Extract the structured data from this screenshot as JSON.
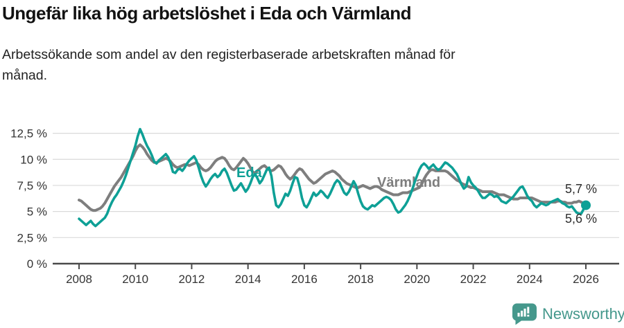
{
  "header": {
    "title": "Ungefär lika hög arbetslöshet i Eda och Värmland",
    "subtitle": "Arbetssökande som andel av den registerbaserade arbetskraften månad för månad.",
    "subtitle_lines": [
      "Arbetssökande som andel av den registerbaserade arbetskraften månad för",
      "månad."
    ]
  },
  "chart_data": {
    "type": "line",
    "title": "Ungefär lika hög arbetslöshet i Eda och Värmland",
    "subtitle": "Arbetssökande som andel av den registerbaserade arbetskraften månad för månad.",
    "unit": "%",
    "grid": true,
    "ylim": [
      0,
      13.5
    ],
    "x_range": {
      "start_year": 2008,
      "start_month": 1,
      "interval": "monthly",
      "points": 217,
      "end_year": 2026
    },
    "y_ticks": [
      {
        "value": 0,
        "label": "0 %"
      },
      {
        "value": 2.5,
        "label": "2,5 %"
      },
      {
        "value": 5,
        "label": "5 %"
      },
      {
        "value": 7.5,
        "label": "7,5 %"
      },
      {
        "value": 10,
        "label": "10 %"
      },
      {
        "value": 12.5,
        "label": "12,5 %"
      }
    ],
    "x_ticks": [
      {
        "label": "2008",
        "month_index": 0
      },
      {
        "label": "2010",
        "month_index": 24
      },
      {
        "label": "2012",
        "month_index": 48
      },
      {
        "label": "2014",
        "month_index": 72
      },
      {
        "label": "2016",
        "month_index": 96
      },
      {
        "label": "2018",
        "month_index": 120
      },
      {
        "label": "2020",
        "month_index": 144
      },
      {
        "label": "2022",
        "month_index": 168
      },
      {
        "label": "2024",
        "month_index": 192
      },
      {
        "label": "2026",
        "month_index": 216
      }
    ],
    "series": [
      {
        "name": "Värmland",
        "slug": "varmland",
        "color": "#7e7e7e",
        "inline_label": "Värmland",
        "end_label": "5,7 %",
        "latest_value": 5.7,
        "end_dot": false,
        "values": [
          6.1,
          6.0,
          5.8,
          5.6,
          5.4,
          5.2,
          5.1,
          5.1,
          5.2,
          5.3,
          5.5,
          5.8,
          6.2,
          6.6,
          7.0,
          7.4,
          7.7,
          8.0,
          8.3,
          8.7,
          9.1,
          9.5,
          9.9,
          10.3,
          10.8,
          11.2,
          11.4,
          11.2,
          10.9,
          10.5,
          10.2,
          9.9,
          9.7,
          9.7,
          9.8,
          9.9,
          10.0,
          10.1,
          10.0,
          9.8,
          9.5,
          9.3,
          9.2,
          9.3,
          9.4,
          9.5,
          9.5,
          9.4,
          9.5,
          9.6,
          9.7,
          9.5,
          9.2,
          9.0,
          8.9,
          9.0,
          9.2,
          9.5,
          9.8,
          10.0,
          10.1,
          10.2,
          10.1,
          9.8,
          9.4,
          9.1,
          9.0,
          9.2,
          9.5,
          9.8,
          10.1,
          9.9,
          9.6,
          9.2,
          8.8,
          8.7,
          8.9,
          9.1,
          9.3,
          9.4,
          9.2,
          9.0,
          8.9,
          9.0,
          9.2,
          9.4,
          9.3,
          9.0,
          8.6,
          8.3,
          8.1,
          8.3,
          8.6,
          8.9,
          9.1,
          9.0,
          8.7,
          8.4,
          8.1,
          7.9,
          7.7,
          7.8,
          8.0,
          8.2,
          8.4,
          8.6,
          8.7,
          8.8,
          8.9,
          8.8,
          8.6,
          8.4,
          8.1,
          7.9,
          7.7,
          7.6,
          7.5,
          7.4,
          7.3,
          7.3,
          7.4,
          7.5,
          7.4,
          7.3,
          7.2,
          7.3,
          7.4,
          7.4,
          7.3,
          7.1,
          7.0,
          6.9,
          6.8,
          6.7,
          6.6,
          6.6,
          6.6,
          6.7,
          6.8,
          6.8,
          6.8,
          6.9,
          7.0,
          7.1,
          7.2,
          7.3,
          7.6,
          8.1,
          8.5,
          8.8,
          9.0,
          9.0,
          8.9,
          8.9,
          8.9,
          8.9,
          8.9,
          8.8,
          8.6,
          8.4,
          8.2,
          8.0,
          7.9,
          7.7,
          7.6,
          7.5,
          7.4,
          7.3,
          7.3,
          7.2,
          7.1,
          7.0,
          6.9,
          6.9,
          6.9,
          6.9,
          6.9,
          6.8,
          6.7,
          6.6,
          6.6,
          6.6,
          6.5,
          6.4,
          6.3,
          6.2,
          6.2,
          6.2,
          6.3,
          6.3,
          6.3,
          6.3,
          6.3,
          6.3,
          6.2,
          6.1,
          6.0,
          5.9,
          5.9,
          5.9,
          5.9,
          5.9,
          5.9,
          5.9,
          6.0,
          6.0,
          5.9,
          5.9,
          5.8,
          5.8,
          5.8,
          5.9,
          5.9,
          6.0,
          5.9,
          5.8,
          5.7
        ]
      },
      {
        "name": "Eda",
        "slug": "eda",
        "color": "#0ea096",
        "inline_label": "Eda",
        "end_label": "5,6 %",
        "latest_value": 5.6,
        "end_dot": true,
        "values": [
          4.3,
          4.1,
          3.9,
          3.7,
          3.9,
          4.1,
          3.8,
          3.6,
          3.8,
          4.0,
          4.2,
          4.4,
          4.8,
          5.4,
          5.9,
          6.3,
          6.6,
          7.0,
          7.4,
          7.9,
          8.5,
          9.2,
          9.9,
          10.6,
          11.3,
          12.2,
          12.9,
          12.4,
          11.8,
          11.3,
          10.9,
          10.4,
          9.8,
          9.6,
          9.9,
          10.1,
          10.3,
          10.5,
          10.2,
          9.6,
          8.8,
          8.7,
          9.0,
          9.1,
          8.9,
          9.2,
          9.6,
          9.9,
          10.1,
          10.3,
          9.9,
          9.2,
          8.4,
          7.8,
          7.4,
          7.7,
          8.1,
          8.4,
          8.6,
          8.3,
          8.5,
          8.9,
          9.1,
          8.7,
          8.1,
          7.5,
          7.0,
          7.1,
          7.4,
          7.7,
          7.3,
          6.9,
          7.2,
          7.7,
          8.3,
          8.6,
          8.2,
          7.7,
          8.0,
          8.5,
          9.0,
          9.2,
          8.4,
          6.8,
          5.6,
          5.4,
          5.7,
          6.2,
          6.7,
          6.5,
          7.0,
          7.7,
          8.3,
          8.2,
          7.4,
          6.3,
          5.6,
          5.4,
          5.8,
          6.3,
          6.8,
          6.5,
          6.7,
          7.0,
          6.8,
          6.5,
          6.3,
          6.7,
          7.2,
          7.7,
          8.0,
          7.8,
          7.3,
          6.8,
          6.6,
          6.9,
          7.4,
          7.9,
          7.5,
          6.7,
          6.0,
          5.5,
          5.3,
          5.2,
          5.4,
          5.6,
          5.5,
          5.7,
          5.9,
          6.1,
          6.3,
          6.4,
          6.3,
          6.1,
          5.7,
          5.2,
          4.9,
          5.0,
          5.3,
          5.6,
          6.0,
          6.5,
          7.1,
          7.8,
          8.4,
          9.0,
          9.4,
          9.6,
          9.4,
          9.1,
          9.3,
          9.5,
          9.2,
          9.0,
          9.1,
          9.4,
          9.7,
          9.6,
          9.4,
          9.2,
          8.9,
          8.6,
          8.1,
          7.6,
          7.2,
          7.4,
          8.3,
          7.8,
          7.5,
          7.3,
          7.0,
          6.6,
          6.3,
          6.3,
          6.5,
          6.7,
          6.6,
          6.4,
          6.5,
          6.3,
          6.0,
          5.9,
          5.8,
          6.0,
          6.2,
          6.4,
          6.7,
          7.0,
          7.3,
          7.4,
          7.0,
          6.5,
          6.2,
          6.0,
          5.6,
          5.4,
          5.6,
          5.8,
          5.7,
          5.6,
          5.7,
          5.9,
          6.0,
          6.1,
          6.2,
          6.0,
          5.8,
          5.7,
          5.5,
          5.4,
          5.5,
          5.2,
          4.9,
          4.8,
          4.8,
          5.2,
          5.6
        ]
      }
    ]
  },
  "footer": {
    "brand": "Newsworthy",
    "brand_color": "#45988c",
    "logo_icon": "speech-bubble-bar-chart"
  }
}
